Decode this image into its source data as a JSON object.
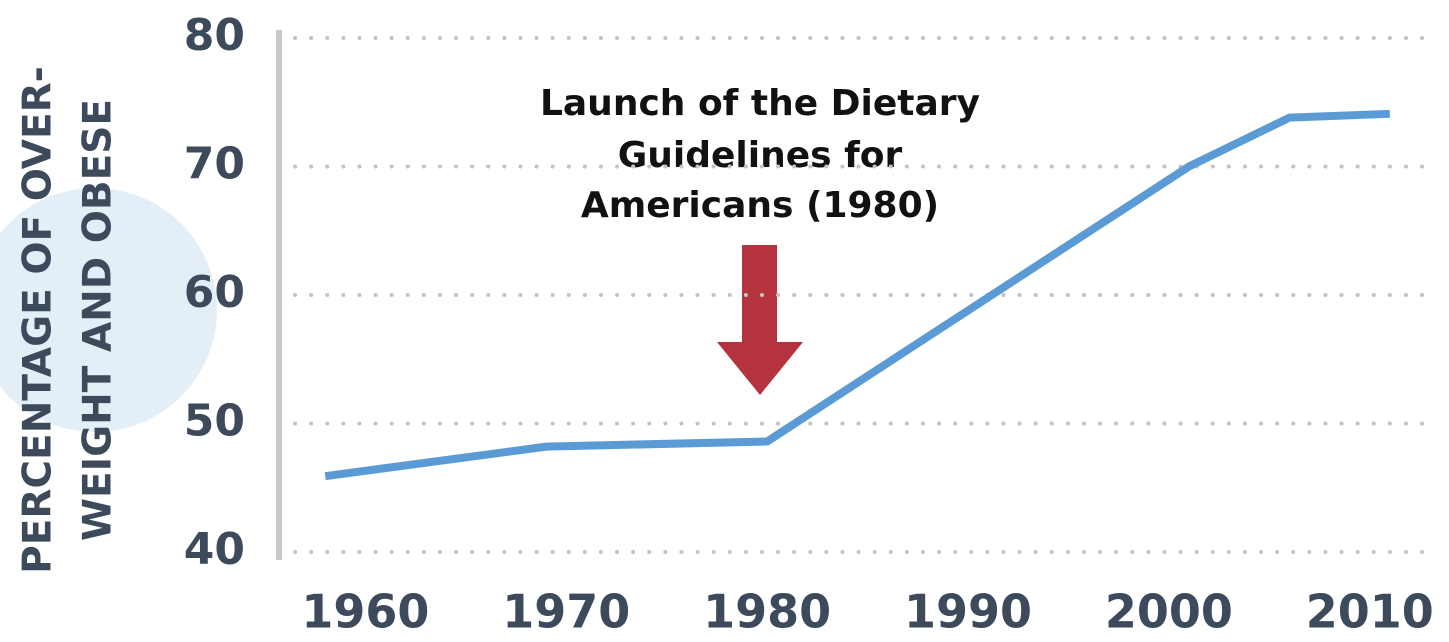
{
  "chart_data": {
    "type": "line",
    "ylabel": [
      "PERCENTAGE OF OVER-",
      "WEIGHT AND OBESE"
    ],
    "annotation": [
      "Launch of the Dietary",
      "Guidelines for",
      "Americans (1980)"
    ],
    "x": [
      1958,
      1969,
      1980,
      2001,
      2006,
      2011
    ],
    "series": [
      {
        "color": "#5b9bd5",
        "values": [
          45.9,
          48.2,
          48.6,
          70.0,
          73.8,
          74.1
        ]
      }
    ],
    "xlim": [
      1955.7,
      2013
    ],
    "xticks": [
      1960,
      1970,
      1980,
      1990,
      2000,
      2010
    ],
    "ylim": [
      40,
      80
    ],
    "yticks": [
      40,
      50,
      60,
      70,
      80
    ],
    "grid": true
  }
}
